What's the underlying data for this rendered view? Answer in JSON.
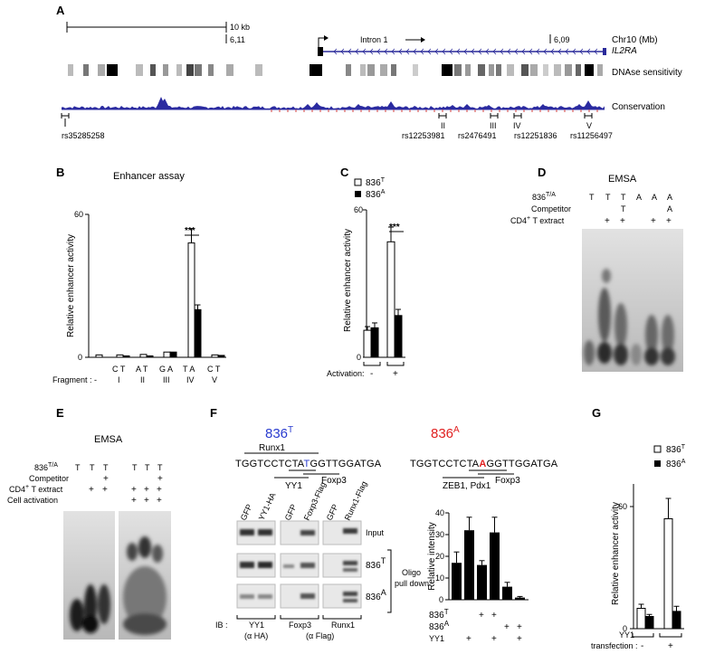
{
  "panels": {
    "A": "A",
    "B": "B",
    "C": "C",
    "D": "D",
    "E": "E",
    "F": "F",
    "G": "G"
  },
  "panel_a": {
    "scale_label": "10 kb",
    "coord_left": "6,11",
    "coord_right": "6,09",
    "chr_label": "Chr10 (Mb)",
    "gene_label": "IL2RA",
    "intron_label": "Intron 1",
    "dnase_label": "DNAse sensitivity",
    "conservation_label": "Conservation",
    "roman": [
      "I",
      "II",
      "III",
      "IV",
      "V"
    ],
    "snps": [
      "rs35285258",
      "rs12253981",
      "rs2476491",
      "rs12251836",
      "rs11256497"
    ]
  },
  "panel_b": {
    "title": "Enhancer assay",
    "ylabel": "Relative enhancer activity",
    "ytick_top": "60",
    "ytick_bottom": "0",
    "significance": "***",
    "fragment_label": "Fragment :",
    "fragment_dash": "-",
    "pairs": [
      "C T",
      "A T",
      "G A",
      "T A",
      "C T"
    ],
    "fragments": [
      "I",
      "II",
      "III",
      "IV",
      "V"
    ]
  },
  "panel_c": {
    "legend_t": "836",
    "legend_t_sup": "T",
    "legend_a": "836",
    "legend_a_sup": "A",
    "ylabel": "Relative enhancer activity",
    "ytick_top": "60",
    "ytick_bottom": "0",
    "significance": "***",
    "activation_label": "Activation:",
    "minus": "-",
    "plus": "+"
  },
  "panel_d": {
    "title": "EMSA",
    "row1_label": "836",
    "row1_sup": "T/A",
    "row2_label": "Competitor",
    "row3_label": "CD4",
    "row3_sup": "+",
    "row3_suffix": " T extract",
    "lanes_allele": [
      "T",
      "T",
      "T",
      "A",
      "A",
      "A"
    ],
    "lanes_competitor": [
      "",
      "",
      "T",
      "",
      "",
      "A"
    ],
    "lanes_extract": [
      "",
      "+",
      "+",
      "",
      "+",
      "+"
    ]
  },
  "panel_e": {
    "title": "EMSA",
    "row1_label": "836",
    "row1_sup": "T/A",
    "row2_label": "Competitor",
    "row3_label": "CD4",
    "row3_sup": "+",
    "row3_suffix": " T extract",
    "row4_label": "Cell activation",
    "lanes_allele": [
      "T",
      "T",
      "T",
      "T",
      "T",
      "T"
    ],
    "lanes_competitor": [
      "",
      "",
      "+",
      "",
      "",
      "+"
    ],
    "lanes_extract": [
      "",
      "+",
      "+",
      "+",
      "+",
      "+"
    ],
    "lanes_activation": [
      "",
      "",
      "",
      "+",
      "+",
      "+"
    ]
  },
  "panel_f": {
    "t_title": "836",
    "t_sup": "T",
    "a_title": "836",
    "a_sup": "A",
    "seq_t_pre": "TGGTCCTCTA",
    "seq_t_var": "T",
    "seq_t_post": "GGTTGGATGA",
    "seq_a_pre": "TGGTCCTCTA",
    "seq_a_var": "A",
    "seq_a_post": "GGTTGGATGA",
    "runx1": "Runx1",
    "yy1": "YY1",
    "foxp3": "Foxp3",
    "foxp3_b": "Foxp3",
    "zeb": "ZEB1, Pdx1",
    "blot_cols": [
      "GFP",
      "YY1-HA",
      "GFP",
      "Foxp3-Flag",
      "GFP",
      "Runx1-Flag"
    ],
    "input_label": "Input",
    "row_t": "836",
    "row_t_sup": "T",
    "row_a": "836",
    "row_a_sup": "A",
    "oligo": "Oligo",
    "pull_down": "pull down",
    "ib_label": "IB :",
    "ib1": "YY1",
    "ib1_sub": "(α HA)",
    "ib2": "Foxp3",
    "ib3": "Runx1",
    "ib23_sub": "(α Flag)",
    "ylabel": "Relative intensity",
    "yticks": [
      "0",
      "10",
      "20",
      "30",
      "40"
    ],
    "x836t": "836",
    "x836t_sup": "T",
    "x836a": "836",
    "x836a_sup": "A",
    "xyy1": "YY1",
    "row836t": [
      "",
      "+",
      "+",
      "",
      " "
    ],
    "row836a": [
      "",
      "",
      "+",
      "+",
      "+"
    ]
  },
  "panel_g": {
    "legend_t": "836",
    "legend_t_sup": "T",
    "legend_a": "836",
    "legend_a_sup": "A",
    "ylabel": "Relative enhancer activity",
    "ytick_top": "60",
    "ytick_bottom": "0",
    "yy1_label": "YY1",
    "transfection_label": "transfection :",
    "minus": "-",
    "plus": "+"
  },
  "chart_data": [
    {
      "type": "bar",
      "panel": "B",
      "title": "Enhancer assay",
      "ylabel": "Relative enhancer activity",
      "ylim": [
        0,
        60
      ],
      "categories": [
        "-",
        "I",
        "II",
        "III",
        "IV",
        "V"
      ],
      "series": [
        {
          "name": "836T",
          "values": [
            1,
            1,
            1.2,
            2.2,
            48,
            1
          ]
        },
        {
          "name": "836A",
          "values": [
            null,
            0.6,
            0.6,
            2.2,
            20,
            0.8
          ]
        }
      ],
      "errors": [
        [
          0,
          0,
          0,
          0,
          6,
          0
        ],
        [
          0,
          0,
          0,
          0,
          2,
          0
        ]
      ]
    },
    {
      "type": "bar",
      "panel": "C",
      "ylabel": "Relative enhancer activity",
      "ylim": [
        0,
        60
      ],
      "categories": [
        "-",
        "+"
      ],
      "series": [
        {
          "name": "836T",
          "values": [
            11,
            47
          ]
        },
        {
          "name": "836A",
          "values": [
            12,
            17
          ]
        }
      ],
      "errors": [
        [
          1.5,
          6
        ],
        [
          2,
          2.5
        ]
      ]
    },
    {
      "type": "bar",
      "panel": "F",
      "ylabel": "Relative intensity",
      "ylim": [
        0,
        40
      ],
      "categories": [
        "836T",
        "836T+YY1",
        "836T",
        "836T+YY1",
        "836A",
        "836A+YY1"
      ],
      "values": [
        17,
        32,
        16,
        31,
        6,
        1
      ],
      "errors": [
        5,
        6,
        2,
        7,
        2,
        0.5
      ]
    },
    {
      "type": "bar",
      "panel": "G",
      "ylabel": "Relative enhancer activity",
      "ylim": [
        0,
        60
      ],
      "categories": [
        "-",
        "+"
      ],
      "series": [
        {
          "name": "836T",
          "values": [
            10,
            54
          ]
        },
        {
          "name": "836A",
          "values": [
            6,
            8.5
          ]
        }
      ],
      "errors": [
        [
          2,
          10
        ],
        [
          1,
          2.5
        ]
      ]
    }
  ]
}
